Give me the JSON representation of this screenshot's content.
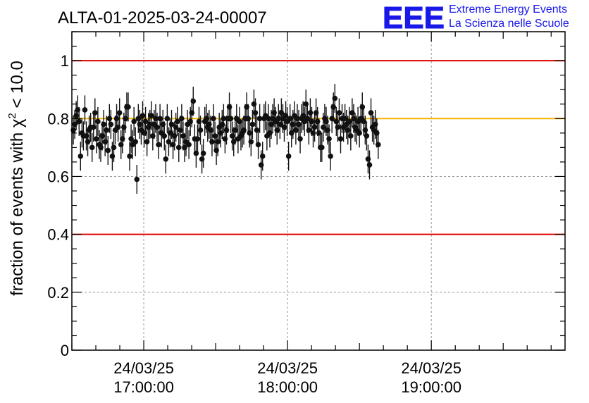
{
  "chart_data": {
    "type": "scatter",
    "title": "ALTA-01-2025-03-24-00007",
    "xlabel": "",
    "ylabel": "fraction of events with χ² < 10.0",
    "ylabel_parts": [
      "fraction of events with ",
      "χ",
      "2",
      " < 10.0"
    ],
    "ylim": [
      0,
      1.1
    ],
    "xlim_hours": [
      16.5,
      19.93
    ],
    "y_ticks": [
      {
        "value": 0,
        "label": "0"
      },
      {
        "value": 0.2,
        "label": "0.2"
      },
      {
        "value": 0.4,
        "label": "0.4"
      },
      {
        "value": 0.6,
        "label": "0.6"
      },
      {
        "value": 0.8,
        "label": "0.8"
      },
      {
        "value": 1,
        "label": "1"
      }
    ],
    "x_ticks": [
      {
        "hour": 17,
        "date": "24/03/25",
        "time": "17:00:00"
      },
      {
        "hour": 18,
        "date": "24/03/25",
        "time": "18:00:00"
      },
      {
        "hour": 19,
        "date": "24/03/25",
        "time": "19:00:00"
      }
    ],
    "reference_lines": [
      {
        "y": 1.0,
        "color": "#e00000"
      },
      {
        "y": 0.4,
        "color": "#e00000"
      },
      {
        "y": 0.8,
        "color": "#f0b400"
      }
    ],
    "series": [
      {
        "name": "fraction",
        "x_start": 16.51,
        "x_step": 0.01005,
        "values": [
          0.76,
          0.78,
          0.81,
          0.83,
          0.79,
          0.67,
          0.75,
          0.74,
          0.83,
          0.74,
          0.72,
          0.76,
          0.77,
          0.7,
          0.77,
          0.82,
          0.73,
          0.79,
          0.71,
          0.7,
          0.74,
          0.78,
          0.72,
          0.76,
          0.69,
          0.8,
          0.78,
          0.67,
          0.7,
          0.76,
          0.8,
          0.77,
          0.82,
          0.71,
          0.73,
          0.77,
          0.8,
          0.84,
          0.84,
          0.67,
          0.73,
          0.71,
          0.79,
          0.72,
          0.59,
          0.8,
          0.78,
          0.76,
          0.81,
          0.75,
          0.79,
          0.72,
          0.77,
          0.78,
          0.81,
          0.74,
          0.78,
          0.8,
          0.77,
          0.71,
          0.8,
          0.75,
          0.78,
          0.74,
          0.66,
          0.8,
          0.72,
          0.75,
          0.78,
          0.71,
          0.74,
          0.77,
          0.79,
          0.7,
          0.76,
          0.8,
          0.74,
          0.7,
          0.72,
          0.78,
          0.71,
          0.79,
          0.82,
          0.86,
          0.73,
          0.68,
          0.73,
          0.79,
          0.76,
          0.66,
          0.68,
          0.79,
          0.8,
          0.77,
          0.78,
          0.76,
          0.72,
          0.8,
          0.74,
          0.69,
          0.72,
          0.77,
          0.75,
          0.78,
          0.8,
          0.73,
          0.76,
          0.8,
          0.84,
          0.8,
          0.74,
          0.72,
          0.76,
          0.8,
          0.73,
          0.79,
          0.74,
          0.75,
          0.76,
          0.8,
          0.84,
          0.8,
          0.75,
          0.72,
          0.78,
          0.85,
          0.82,
          0.76,
          0.71,
          0.8,
          0.64,
          0.67,
          0.8,
          0.81,
          0.74,
          0.8,
          0.75,
          0.78,
          0.8,
          0.82,
          0.79,
          0.76,
          0.8,
          0.78,
          0.82,
          0.8,
          0.77,
          0.81,
          0.79,
          0.67,
          0.8,
          0.75,
          0.78,
          0.81,
          0.76,
          0.8,
          0.78,
          0.73,
          0.8,
          0.81,
          0.79,
          0.85,
          0.8,
          0.76,
          0.82,
          0.79,
          0.75,
          0.77,
          0.82,
          0.79,
          0.75,
          0.7,
          0.7,
          0.77,
          0.8,
          0.79,
          0.76,
          0.73,
          0.67,
          0.8,
          0.84,
          0.87,
          0.79,
          0.77,
          0.82,
          0.73,
          0.8,
          0.77,
          0.8,
          0.78,
          0.76,
          0.79,
          0.74,
          0.82,
          0.8,
          0.77,
          0.76,
          0.79,
          0.75,
          0.8,
          0.84,
          0.79,
          0.76,
          0.74,
          0.66,
          0.64,
          0.82,
          0.77,
          0.76,
          0.78,
          0.75,
          0.71
        ]
      }
    ]
  },
  "logo": {
    "mark": "EEE",
    "line1": "Extreme Energy Events",
    "line2": "La Scienza nelle Scuole"
  },
  "colors": {
    "reference_red": "#e00000",
    "reference_orange": "#f0b400",
    "logo_blue": "#1818e8",
    "marker": "#111111"
  }
}
